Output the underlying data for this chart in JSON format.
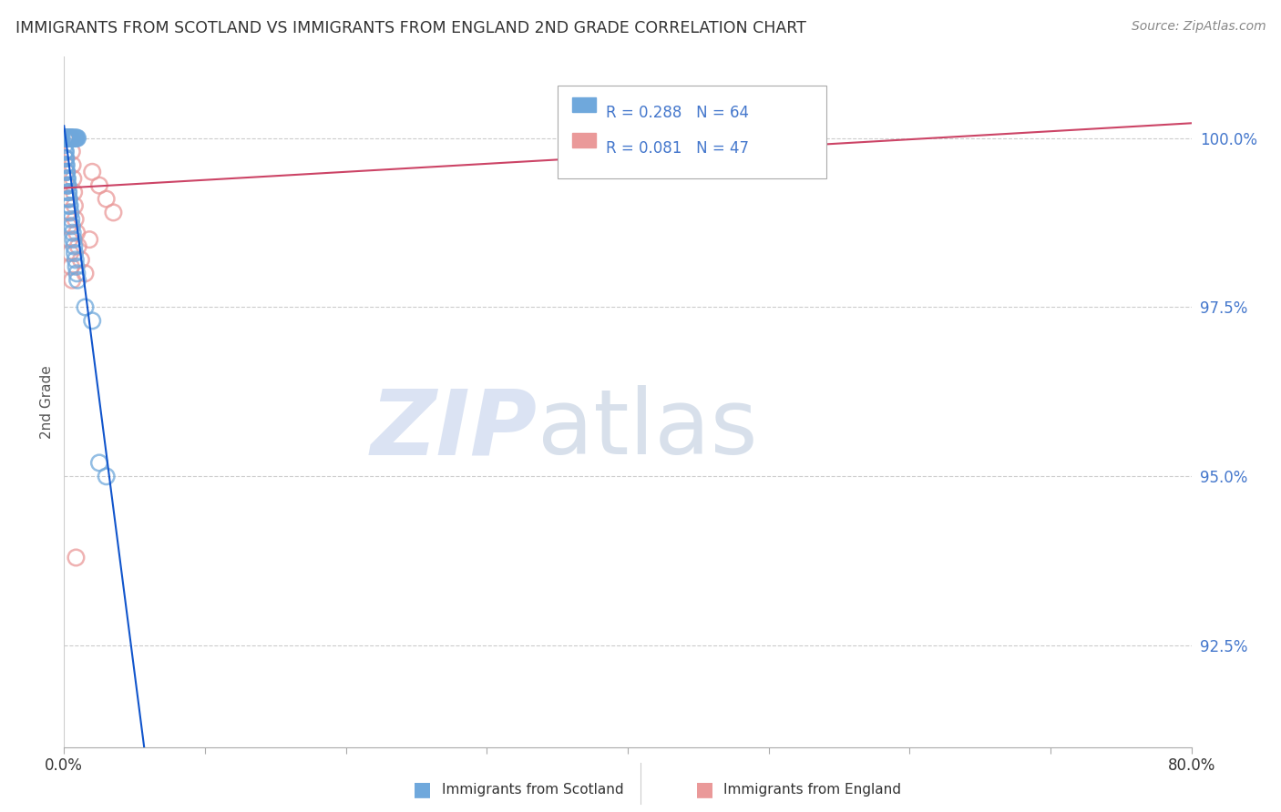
{
  "title": "IMMIGRANTS FROM SCOTLAND VS IMMIGRANTS FROM ENGLAND 2ND GRADE CORRELATION CHART",
  "source": "Source: ZipAtlas.com",
  "ylabel": "2nd Grade",
  "xlim": [
    0.0,
    80.0
  ],
  "ylim": [
    91.0,
    101.2
  ],
  "ytick_positions": [
    92.5,
    95.0,
    97.5,
    100.0
  ],
  "ytick_labels": [
    "92.5%",
    "95.0%",
    "97.5%",
    "100.0%"
  ],
  "scotland_R": 0.288,
  "scotland_N": 64,
  "england_R": 0.081,
  "england_N": 47,
  "scotland_color": "#6fa8dc",
  "england_color": "#ea9999",
  "scotland_line_color": "#1155cc",
  "england_line_color": "#cc4466",
  "grid_color": "#cccccc",
  "background_color": "#ffffff",
  "scotland_x": [
    0.05,
    0.08,
    0.1,
    0.12,
    0.15,
    0.18,
    0.2,
    0.22,
    0.25,
    0.28,
    0.3,
    0.32,
    0.35,
    0.38,
    0.4,
    0.42,
    0.45,
    0.48,
    0.5,
    0.52,
    0.55,
    0.58,
    0.6,
    0.65,
    0.7,
    0.75,
    0.8,
    0.85,
    0.9,
    0.95,
    0.06,
    0.09,
    0.13,
    0.17,
    0.21,
    0.26,
    0.31,
    0.36,
    0.41,
    0.46,
    0.51,
    0.56,
    0.61,
    0.66,
    0.71,
    0.76,
    0.81,
    0.86,
    0.91,
    0.96,
    0.07,
    0.11,
    0.14,
    0.16,
    0.19,
    0.23,
    0.27,
    0.29,
    0.33,
    0.37,
    1.5,
    2.0,
    2.5,
    3.0
  ],
  "scotland_y": [
    100.0,
    100.0,
    100.0,
    100.0,
    100.0,
    100.0,
    100.0,
    100.0,
    100.0,
    100.0,
    100.0,
    100.0,
    100.0,
    100.0,
    100.0,
    100.0,
    100.0,
    100.0,
    100.0,
    100.0,
    100.0,
    100.0,
    100.0,
    100.0,
    100.0,
    100.0,
    100.0,
    100.0,
    100.0,
    100.0,
    99.8,
    99.7,
    99.6,
    99.5,
    99.4,
    99.3,
    99.2,
    99.1,
    99.0,
    98.9,
    98.8,
    98.7,
    98.6,
    98.5,
    98.4,
    98.3,
    98.2,
    98.1,
    98.0,
    97.9,
    99.9,
    99.8,
    99.7,
    99.6,
    99.5,
    99.4,
    99.3,
    99.2,
    99.1,
    99.0,
    97.5,
    97.3,
    95.2,
    95.0
  ],
  "england_x": [
    0.05,
    0.08,
    0.1,
    0.12,
    0.15,
    0.18,
    0.2,
    0.22,
    0.25,
    0.28,
    0.3,
    0.32,
    0.35,
    0.38,
    0.4,
    0.42,
    0.45,
    0.48,
    0.5,
    0.52,
    0.55,
    0.6,
    0.65,
    0.7,
    0.75,
    0.8,
    0.9,
    1.0,
    1.2,
    1.5,
    2.0,
    2.5,
    3.0,
    3.5,
    0.11,
    0.14,
    0.17,
    0.23,
    0.27,
    0.31,
    0.37,
    0.43,
    0.49,
    0.58,
    1.8,
    40.0,
    0.85
  ],
  "england_y": [
    100.0,
    100.0,
    100.0,
    100.0,
    100.0,
    100.0,
    100.0,
    100.0,
    100.0,
    100.0,
    100.0,
    100.0,
    100.0,
    100.0,
    100.0,
    100.0,
    100.0,
    100.0,
    100.0,
    100.0,
    99.8,
    99.6,
    99.4,
    99.2,
    99.0,
    98.8,
    98.6,
    98.4,
    98.2,
    98.0,
    99.5,
    99.3,
    99.1,
    98.9,
    99.7,
    99.5,
    99.3,
    99.1,
    98.9,
    98.7,
    98.5,
    98.3,
    98.1,
    97.9,
    98.5,
    100.0,
    93.8
  ],
  "legend_scotland_label": "Immigrants from Scotland",
  "legend_england_label": "Immigrants from England"
}
